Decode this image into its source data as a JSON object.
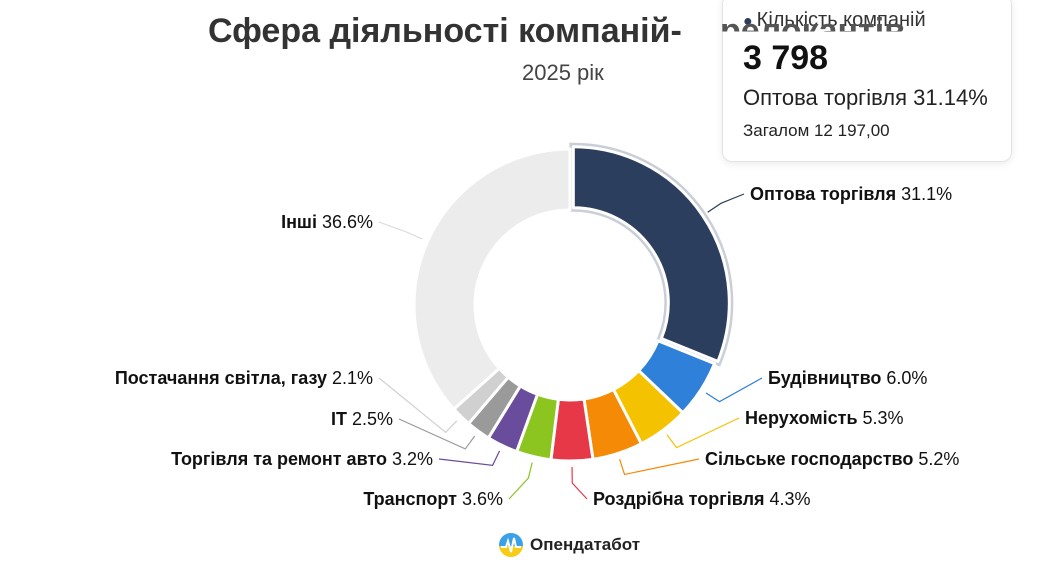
{
  "header": {
    "title": "Сфера діяльності компаній-",
    "title_tail": "релокантів",
    "subtitle": "2025 рік"
  },
  "tooltip": {
    "series_name": "Кількість компаній",
    "value": "3 798",
    "point_label": "Оптова торгівля 31.14%",
    "total_label": "Загалом 12 197,00"
  },
  "credit": {
    "text": "Опендатабот"
  },
  "icons": {
    "series_dot": "●",
    "logo": "opendatabot-logo-icon"
  },
  "chart_data": {
    "type": "pie",
    "variant": "donut",
    "title": "Сфера діяльності компаній-релокантів",
    "subtitle": "2025 рік",
    "series_name": "Кількість компаній",
    "total": 12197,
    "slices": [
      {
        "name": "Оптова торгівля",
        "percent": 31.1,
        "label": "31.1%",
        "color": "#2c3e5e"
      },
      {
        "name": "Будівництво",
        "percent": 6.0,
        "label": "6.0%",
        "color": "#2f80d8"
      },
      {
        "name": "Нерухомість",
        "percent": 5.3,
        "label": "5.3%",
        "color": "#f5c200"
      },
      {
        "name": "Сільське господарство",
        "percent": 5.2,
        "label": "5.2%",
        "color": "#f58a07"
      },
      {
        "name": "Роздрібна торгівля",
        "percent": 4.3,
        "label": "4.3%",
        "color": "#e73847"
      },
      {
        "name": "Транспорт",
        "percent": 3.6,
        "label": "3.6%",
        "color": "#8cc51f"
      },
      {
        "name": "Торгівля та ремонт авто",
        "percent": 3.2,
        "label": "3.2%",
        "color": "#6a4c9c"
      },
      {
        "name": "IT",
        "percent": 2.5,
        "label": "2.5%",
        "color": "#9a9a9a"
      },
      {
        "name": "Постачання світла, газу",
        "percent": 2.1,
        "label": "2.1%",
        "color": "#d0d0d0"
      },
      {
        "name": "Інші",
        "percent": 36.6,
        "label": "36.6%",
        "color": "#ececec"
      }
    ],
    "highlighted": "Оптова торгівля",
    "legend": "none"
  }
}
